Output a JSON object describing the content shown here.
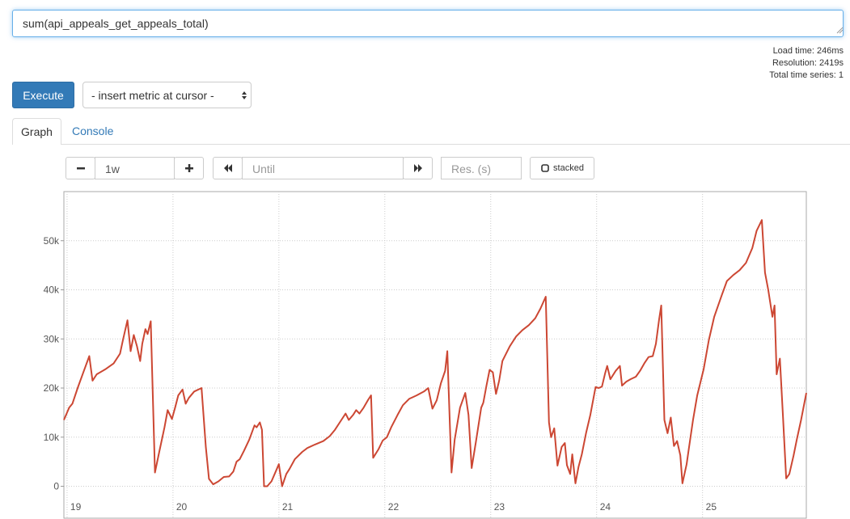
{
  "query": "sum(api_appeals_get_appeals_total)",
  "stats": [
    "Load time: 246ms",
    "Resolution: 2419s",
    "Total time series: 1"
  ],
  "controls": {
    "execute": "Execute",
    "insert_metric": "- insert metric at cursor -",
    "tabs": [
      "Graph",
      "Console"
    ],
    "range": "1w",
    "until": "Until",
    "resolution": "Res. (s)",
    "stacked": "stacked"
  },
  "chart_data": {
    "type": "line",
    "x": [
      18.97,
      19.02,
      19.05,
      19.1,
      19.15,
      19.21,
      19.24,
      19.28,
      19.36,
      19.44,
      19.5,
      19.53,
      19.57,
      19.6,
      19.63,
      19.66,
      19.69,
      19.71,
      19.74,
      19.76,
      19.79,
      19.83,
      19.87,
      19.92,
      19.95,
      19.99,
      20.02,
      20.05,
      20.09,
      20.12,
      20.15,
      20.2,
      20.27,
      20.31,
      20.34,
      20.38,
      20.43,
      20.48,
      20.53,
      20.57,
      20.6,
      20.63,
      20.67,
      20.72,
      20.77,
      20.79,
      20.82,
      20.84,
      20.86,
      20.89,
      20.93,
      20.97,
      21.0,
      21.03,
      21.07,
      21.1,
      21.15,
      21.22,
      21.27,
      21.34,
      21.42,
      21.48,
      21.53,
      21.59,
      21.63,
      21.66,
      21.7,
      21.73,
      21.76,
      21.8,
      21.84,
      21.87,
      21.89,
      21.94,
      21.98,
      22.02,
      22.06,
      22.12,
      22.17,
      22.23,
      22.3,
      22.37,
      22.41,
      22.45,
      22.49,
      22.53,
      22.57,
      22.59,
      22.63,
      22.66,
      22.71,
      22.76,
      22.79,
      22.82,
      22.86,
      22.91,
      22.93,
      22.96,
      22.99,
      23.02,
      23.05,
      23.08,
      23.11,
      23.18,
      23.24,
      23.3,
      23.36,
      23.42,
      23.47,
      23.52,
      23.55,
      23.57,
      23.6,
      23.63,
      23.67,
      23.7,
      23.72,
      23.75,
      23.77,
      23.8,
      23.83,
      23.86,
      23.9,
      23.94,
      23.99,
      24.02,
      24.05,
      24.08,
      24.1,
      24.13,
      24.18,
      24.22,
      24.24,
      24.28,
      24.32,
      24.37,
      24.41,
      24.45,
      24.49,
      24.53,
      24.56,
      24.59,
      24.61,
      24.64,
      24.67,
      24.7,
      24.73,
      24.76,
      24.79,
      24.81,
      24.85,
      24.87,
      24.91,
      24.95,
      25.01,
      25.06,
      25.11,
      25.18,
      25.23,
      25.29,
      25.35,
      25.41,
      25.47,
      25.51,
      25.56,
      25.59,
      25.62,
      25.66,
      25.68,
      25.7,
      25.73,
      25.76,
      25.79,
      25.82,
      25.86,
      25.89,
      25.93,
      25.98
    ],
    "series": [
      {
        "color": "#cc4733",
        "values": [
          13500,
          16000,
          16800,
          20000,
          23000,
          26500,
          21500,
          22800,
          23800,
          25000,
          27000,
          30000,
          33800,
          27500,
          30800,
          28500,
          25500,
          29000,
          32000,
          31000,
          33600,
          2800,
          7000,
          12000,
          15500,
          13700,
          16000,
          18500,
          19700,
          16800,
          18000,
          19300,
          20000,
          8000,
          1500,
          400,
          1000,
          1900,
          2000,
          3000,
          5000,
          5500,
          7200,
          9500,
          12400,
          12000,
          13000,
          11500,
          0,
          0,
          1000,
          3000,
          4500,
          0,
          2500,
          3500,
          5500,
          7000,
          7800,
          8500,
          9200,
          10200,
          11500,
          13500,
          14800,
          13500,
          14500,
          15500,
          14800,
          16000,
          17500,
          18500,
          5800,
          7500,
          9300,
          10000,
          12000,
          14500,
          16500,
          17800,
          18500,
          19300,
          20000,
          15800,
          17500,
          21000,
          23500,
          27500,
          2800,
          9500,
          16000,
          19000,
          14500,
          3700,
          9000,
          16000,
          17000,
          20500,
          23700,
          23200,
          18800,
          21500,
          25500,
          28500,
          30500,
          31800,
          32800,
          34200,
          36200,
          38600,
          13000,
          10000,
          11800,
          4200,
          8000,
          8800,
          4300,
          2500,
          6500,
          600,
          4000,
          6500,
          10800,
          14500,
          20200,
          20000,
          20300,
          23000,
          24500,
          21800,
          23500,
          24500,
          20500,
          21300,
          21800,
          22300,
          23500,
          25000,
          26300,
          26500,
          29000,
          34000,
          36800,
          13500,
          10800,
          14000,
          8200,
          9200,
          6300,
          600,
          4500,
          7500,
          13500,
          18500,
          23800,
          29800,
          34500,
          38800,
          41800,
          43000,
          44000,
          45500,
          48500,
          52000,
          54200,
          43500,
          40000,
          34500,
          36800,
          22800,
          26000,
          14000,
          1600,
          2500,
          6300,
          9500,
          13500,
          19000
        ]
      }
    ],
    "xlim": [
      18.97,
      25.98
    ],
    "xticks": [
      19,
      20,
      21,
      22,
      23,
      24,
      25
    ],
    "ylim": [
      -6500,
      60000
    ],
    "yticks": [
      0,
      {
        "value": 10000,
        "label": "10k"
      },
      {
        "value": 20000,
        "label": "20k"
      },
      {
        "value": 30000,
        "label": "30k"
      },
      {
        "value": 40000,
        "label": "40k"
      },
      {
        "value": 50000,
        "label": "50k"
      }
    ],
    "grid": true
  }
}
